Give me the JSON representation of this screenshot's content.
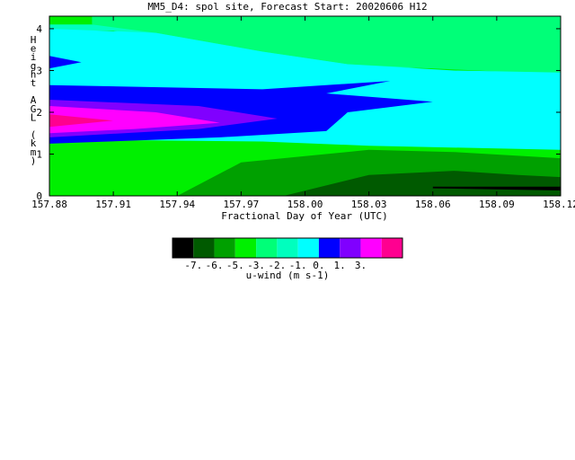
{
  "chart_data": {
    "type": "heatmap",
    "title": "MM5_D4: spol site,  Forecast Start: 20020606 H12",
    "xlabel": "Fractional Day of Year (UTC)",
    "ylabel": "Height AGL (km)",
    "xlim": [
      157.88,
      158.12
    ],
    "ylim": [
      0,
      4.3
    ],
    "x_ticks": [
      "157.88",
      "157.91",
      "157.94",
      "157.97",
      "158.00",
      "158.03",
      "158.06",
      "158.09",
      "158.12"
    ],
    "y_ticks": [
      "0",
      "1",
      "2",
      "3",
      "4"
    ],
    "colorbar": {
      "label": "u-wind (m s-1)",
      "tick_labels": [
        "-7.",
        "-6.",
        "-5.",
        "-3.",
        "-2.",
        "-1.",
        "0.",
        "1.",
        "3."
      ],
      "colors": [
        "#000000",
        "#005a00",
        "#00a000",
        "#00f000",
        "#00ff78",
        "#00ffbe",
        "#00ffff",
        "#0000ff",
        "#8000ff",
        "#ff00ff",
        "#ff0090"
      ]
    },
    "regions": [
      {
        "level": 5,
        "label": "-3. to -2.",
        "color": "#00ffbe",
        "polygon": [
          [
            157.88,
            4.1
          ],
          [
            158.12,
            4.1
          ],
          [
            158.12,
            3.0
          ],
          [
            158.01,
            3.1
          ],
          [
            157.96,
            3.55
          ],
          [
            157.91,
            3.95
          ],
          [
            157.88,
            3.95
          ]
        ]
      },
      {
        "level": 4,
        "label": "-5. to -3.",
        "color": "#00ff78",
        "polygon": [
          [
            157.9,
            4.3
          ],
          [
            158.12,
            4.3
          ],
          [
            158.12,
            2.9
          ],
          [
            158.06,
            3.05
          ],
          [
            158.02,
            3.15
          ],
          [
            157.98,
            3.45
          ],
          [
            157.93,
            3.9
          ],
          [
            157.9,
            4.1
          ]
        ]
      },
      {
        "level": 6,
        "label": "-2. to -1.",
        "color": "#00ffff",
        "polygon": [
          [
            157.88,
            4.0
          ],
          [
            157.93,
            3.9
          ],
          [
            157.98,
            3.45
          ],
          [
            158.02,
            3.15
          ],
          [
            158.07,
            3.0
          ],
          [
            158.12,
            2.95
          ],
          [
            158.12,
            1.1
          ],
          [
            158.03,
            1.2
          ],
          [
            157.98,
            1.3
          ],
          [
            157.88,
            1.35
          ]
        ]
      },
      {
        "level": 7,
        "label": "-1. to 0.",
        "color": "#0000ff",
        "polygon": [
          [
            157.88,
            2.65
          ],
          [
            157.98,
            2.55
          ],
          [
            158.04,
            2.75
          ],
          [
            158.01,
            2.45
          ],
          [
            158.06,
            2.25
          ],
          [
            158.02,
            2.0
          ],
          [
            158.01,
            1.55
          ],
          [
            157.96,
            1.4
          ],
          [
            157.88,
            1.25
          ]
        ]
      },
      {
        "level": 7,
        "label": "-1. to 0. (upper tongue)",
        "color": "#0000ff",
        "polygon": [
          [
            157.88,
            3.35
          ],
          [
            157.895,
            3.2
          ],
          [
            157.88,
            3.05
          ]
        ]
      },
      {
        "level": 8,
        "label": "0. to 1.",
        "color": "#8000ff",
        "polygon": [
          [
            157.88,
            2.3
          ],
          [
            157.95,
            2.15
          ],
          [
            157.987,
            1.85
          ],
          [
            157.95,
            1.6
          ],
          [
            157.88,
            1.4
          ]
        ]
      },
      {
        "level": 9,
        "label": "1. to 3.",
        "color": "#ff00ff",
        "polygon": [
          [
            157.88,
            2.15
          ],
          [
            157.93,
            2.0
          ],
          [
            157.96,
            1.75
          ],
          [
            157.92,
            1.6
          ],
          [
            157.88,
            1.5
          ]
        ]
      },
      {
        "level": 10,
        "label": ">3.",
        "color": "#ff0090",
        "polygon": [
          [
            157.88,
            1.95
          ],
          [
            157.91,
            1.8
          ],
          [
            157.88,
            1.65
          ]
        ]
      },
      {
        "level": 3,
        "label": "-6. to -5.",
        "color": "#00a000",
        "polygon": [
          [
            157.94,
            0.0
          ],
          [
            158.12,
            0.0
          ],
          [
            158.12,
            0.9
          ],
          [
            158.07,
            1.05
          ],
          [
            158.03,
            1.1
          ],
          [
            158.0,
            0.95
          ],
          [
            157.97,
            0.8
          ]
        ]
      },
      {
        "level": 2,
        "label": "-7. to -6.",
        "color": "#005a00",
        "polygon": [
          [
            157.99,
            0.0
          ],
          [
            158.12,
            0.0
          ],
          [
            158.12,
            0.45
          ],
          [
            158.1,
            0.5
          ],
          [
            158.07,
            0.6
          ],
          [
            158.03,
            0.5
          ]
        ]
      },
      {
        "level": 1,
        "label": "< -7.",
        "color": "#000000",
        "polygon": [
          [
            158.06,
            0.22
          ],
          [
            158.12,
            0.22
          ],
          [
            158.12,
            0.13
          ],
          [
            158.06,
            0.18
          ]
        ]
      }
    ]
  }
}
